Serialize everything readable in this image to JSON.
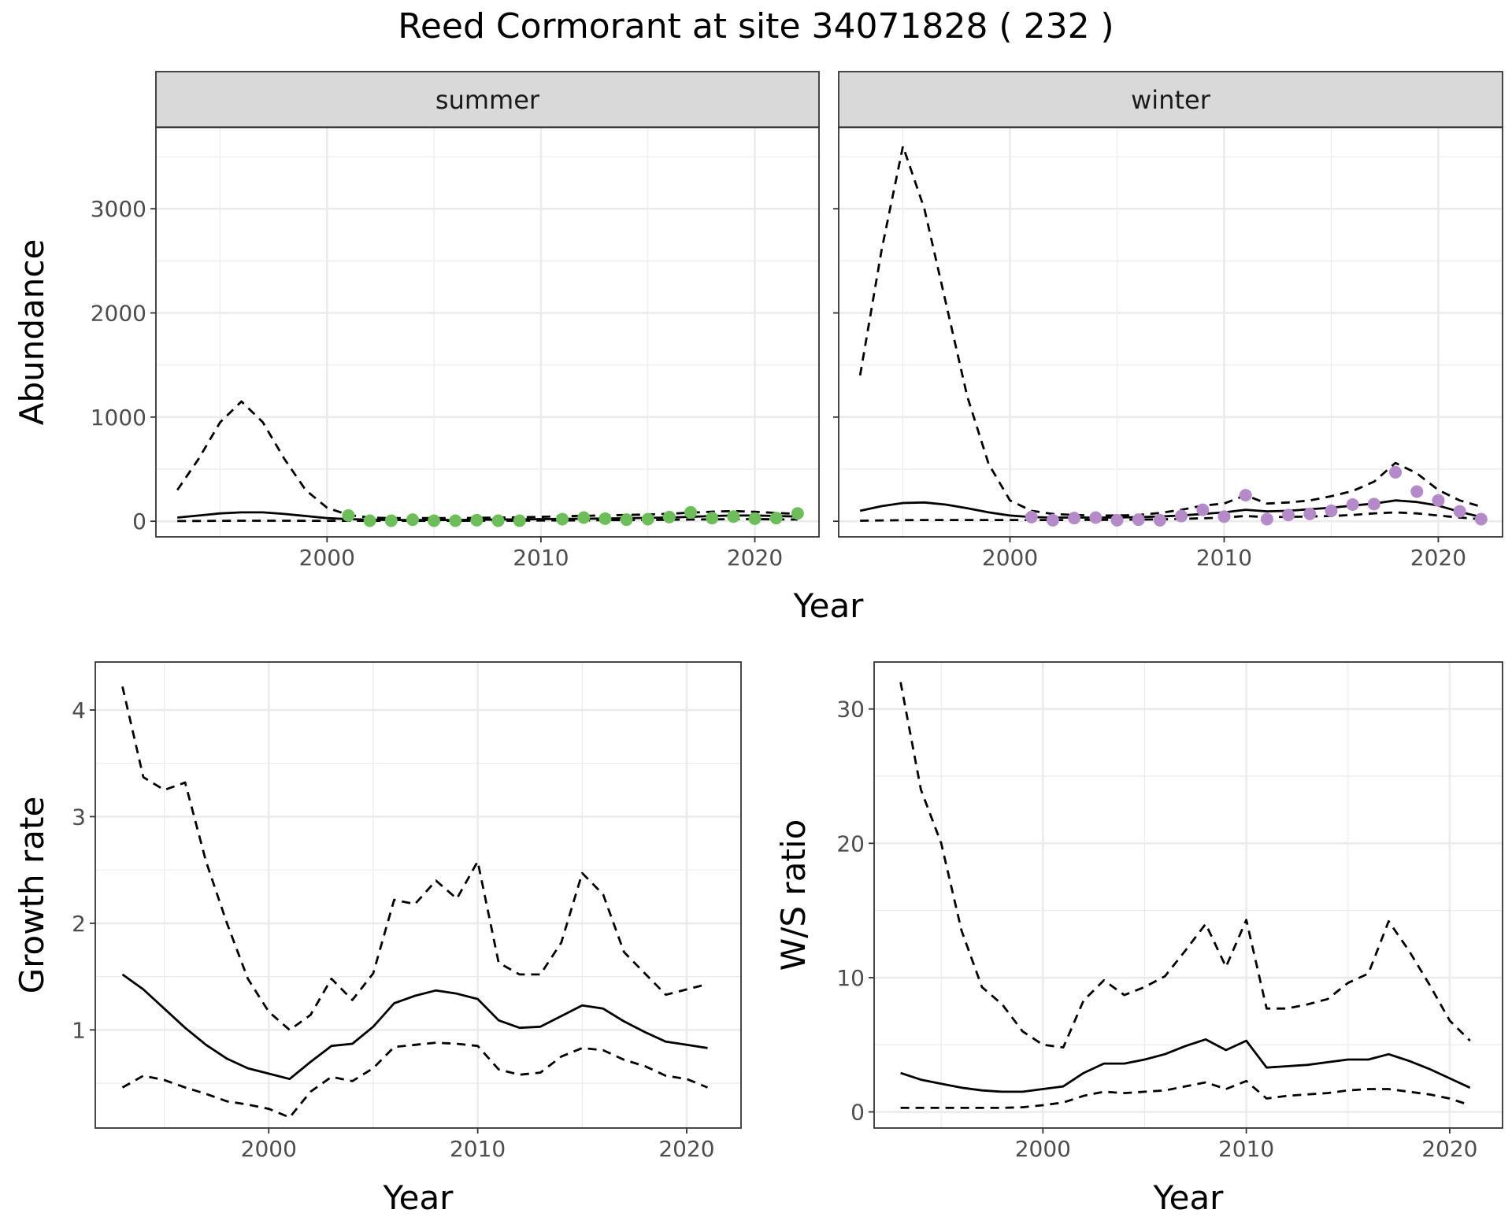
{
  "figure": {
    "title": "Reed Cormorant at site 34071828 ( 232 )"
  },
  "colors": {
    "summer_points": "#6dbe5a",
    "winter_points": "#b48ac8",
    "line": "#000000",
    "strip_fill": "#d9d9d9",
    "grid": "#ebebeb"
  },
  "chart_data": [
    {
      "id": "abundance",
      "type": "line",
      "facets": [
        "summer",
        "winter"
      ],
      "xlabel": "Year",
      "ylabel": "Abundance",
      "xlim": [
        1992,
        2023
      ],
      "ylim": [
        -150,
        3780
      ],
      "x_ticks": [
        2000,
        2010,
        2020
      ],
      "y_ticks": [
        0,
        1000,
        2000,
        3000
      ],
      "grid": true,
      "panels": [
        {
          "facet": "summer",
          "point_color": "#6dbe5a",
          "series": [
            {
              "role": "estimate",
              "style": "solid",
              "x": [
                1993,
                1994,
                1995,
                1996,
                1997,
                1998,
                1999,
                2000,
                2001,
                2002,
                2003,
                2004,
                2005,
                2006,
                2007,
                2008,
                2009,
                2010,
                2011,
                2012,
                2013,
                2014,
                2015,
                2016,
                2017,
                2018,
                2019,
                2020,
                2021,
                2022
              ],
              "y": [
                35,
                55,
                75,
                85,
                85,
                70,
                50,
                30,
                20,
                15,
                12,
                12,
                12,
                12,
                14,
                16,
                18,
                20,
                22,
                24,
                26,
                28,
                32,
                36,
                42,
                50,
                55,
                55,
                50,
                45
              ]
            },
            {
              "role": "upper",
              "style": "dashed",
              "x": [
                1993,
                1994,
                1995,
                1996,
                1997,
                1998,
                1999,
                2000,
                2001,
                2002,
                2003,
                2004,
                2005,
                2006,
                2007,
                2008,
                2009,
                2010,
                2011,
                2012,
                2013,
                2014,
                2015,
                2016,
                2017,
                2018,
                2019,
                2020,
                2021,
                2022
              ],
              "y": [
                300,
                600,
                950,
                1150,
                950,
                600,
                300,
                130,
                60,
                35,
                30,
                30,
                30,
                30,
                32,
                35,
                38,
                42,
                48,
                52,
                56,
                60,
                65,
                72,
                82,
                92,
                98,
                90,
                80,
                70
              ]
            },
            {
              "role": "lower",
              "style": "dashed",
              "x": [
                1993,
                1994,
                1995,
                1996,
                1997,
                1998,
                1999,
                2000,
                2001,
                2002,
                2003,
                2004,
                2005,
                2006,
                2007,
                2008,
                2009,
                2010,
                2011,
                2012,
                2013,
                2014,
                2015,
                2016,
                2017,
                2018,
                2019,
                2020,
                2021,
                2022
              ],
              "y": [
                2,
                3,
                4,
                5,
                5,
                5,
                4,
                4,
                4,
                4,
                4,
                4,
                4,
                4,
                5,
                5,
                6,
                7,
                8,
                9,
                10,
                11,
                12,
                14,
                16,
                18,
                20,
                20,
                18,
                16
              ]
            }
          ],
          "points": {
            "x": [
              2001,
              2002,
              2003,
              2004,
              2005,
              2006,
              2007,
              2008,
              2009,
              2011,
              2012,
              2013,
              2014,
              2015,
              2016,
              2017,
              2018,
              2019,
              2020,
              2021,
              2022
            ],
            "y": [
              55,
              5,
              5,
              15,
              5,
              5,
              10,
              5,
              5,
              20,
              35,
              25,
              15,
              20,
              40,
              85,
              30,
              45,
              25,
              30,
              75
            ]
          }
        },
        {
          "facet": "winter",
          "point_color": "#b48ac8",
          "series": [
            {
              "role": "estimate",
              "style": "solid",
              "x": [
                1993,
                1994,
                1995,
                1996,
                1997,
                1998,
                1999,
                2000,
                2001,
                2002,
                2003,
                2004,
                2005,
                2006,
                2007,
                2008,
                2009,
                2010,
                2011,
                2012,
                2013,
                2014,
                2015,
                2016,
                2017,
                2018,
                2019,
                2020,
                2021,
                2022
              ],
              "y": [
                100,
                145,
                175,
                180,
                160,
                125,
                85,
                55,
                40,
                35,
                35,
                35,
                35,
                40,
                45,
                55,
                70,
                85,
                110,
                95,
                100,
                115,
                130,
                150,
                170,
                200,
                185,
                150,
                90,
                40
              ]
            },
            {
              "role": "upper",
              "style": "dashed",
              "x": [
                1993,
                1994,
                1995,
                1996,
                1997,
                1998,
                1999,
                2000,
                2001,
                2002,
                2003,
                2004,
                2005,
                2006,
                2007,
                2008,
                2009,
                2010,
                2011,
                2012,
                2013,
                2014,
                2015,
                2016,
                2017,
                2018,
                2019,
                2020,
                2021,
                2022
              ],
              "y": [
                1400,
                2600,
                3600,
                3000,
                2100,
                1200,
                550,
                200,
                100,
                70,
                60,
                55,
                55,
                60,
                80,
                110,
                150,
                170,
                250,
                170,
                180,
                200,
                240,
                290,
                380,
                560,
                460,
                300,
                200,
                140
              ]
            },
            {
              "role": "lower",
              "style": "dashed",
              "x": [
                1993,
                1994,
                1995,
                1996,
                1997,
                1998,
                1999,
                2000,
                2001,
                2002,
                2003,
                2004,
                2005,
                2006,
                2007,
                2008,
                2009,
                2010,
                2011,
                2012,
                2013,
                2014,
                2015,
                2016,
                2017,
                2018,
                2019,
                2020,
                2021,
                2022
              ],
              "y": [
                5,
                8,
                10,
                12,
                12,
                12,
                12,
                12,
                12,
                12,
                12,
                14,
                14,
                16,
                18,
                22,
                28,
                35,
                50,
                40,
                42,
                45,
                50,
                60,
                75,
                85,
                75,
                55,
                35,
                20
              ]
            }
          ],
          "points": {
            "x": [
              2001,
              2002,
              2003,
              2004,
              2005,
              2006,
              2007,
              2008,
              2009,
              2010,
              2011,
              2012,
              2013,
              2014,
              2015,
              2016,
              2017,
              2018,
              2019,
              2020,
              2021,
              2022
            ],
            "y": [
              40,
              10,
              30,
              35,
              10,
              15,
              10,
              50,
              110,
              45,
              250,
              20,
              60,
              70,
              100,
              160,
              165,
              470,
              285,
              200,
              95,
              20
            ]
          }
        }
      ]
    },
    {
      "id": "growth",
      "type": "line",
      "xlabel": "Year",
      "ylabel": "Growth rate",
      "xlim": [
        1991.7,
        2022.6
      ],
      "ylim": [
        0.08,
        4.45
      ],
      "x_ticks": [
        2000,
        2010,
        2020
      ],
      "y_ticks": [
        1,
        2,
        3,
        4
      ],
      "grid": true,
      "series": [
        {
          "role": "estimate",
          "style": "solid",
          "x": [
            1993,
            1994,
            1995,
            1996,
            1997,
            1998,
            1999,
            2000,
            2001,
            2002,
            2003,
            2004,
            2005,
            2006,
            2007,
            2008,
            2009,
            2010,
            2011,
            2012,
            2013,
            2014,
            2015,
            2016,
            2017,
            2018,
            2019,
            2020,
            2021
          ],
          "y": [
            1.52,
            1.38,
            1.2,
            1.02,
            0.86,
            0.73,
            0.64,
            0.59,
            0.54,
            0.7,
            0.85,
            0.87,
            1.03,
            1.25,
            1.32,
            1.37,
            1.34,
            1.29,
            1.09,
            1.02,
            1.03,
            1.13,
            1.23,
            1.2,
            1.08,
            0.98,
            0.89,
            0.86,
            0.83
          ]
        },
        {
          "role": "upper",
          "style": "dashed",
          "x": [
            1993,
            1994,
            1995,
            1996,
            1997,
            1998,
            1999,
            2000,
            2001,
            2002,
            2003,
            2004,
            2005,
            2006,
            2007,
            2008,
            2009,
            2010,
            2011,
            2012,
            2013,
            2014,
            2015,
            2016,
            2017,
            2018,
            2019,
            2020,
            2021
          ],
          "y": [
            4.22,
            3.37,
            3.25,
            3.32,
            2.58,
            2.0,
            1.48,
            1.17,
            1.0,
            1.14,
            1.48,
            1.28,
            1.53,
            2.22,
            2.18,
            2.4,
            2.23,
            2.58,
            1.63,
            1.52,
            1.52,
            1.82,
            2.47,
            2.27,
            1.73,
            1.53,
            1.33,
            1.38,
            1.43
          ]
        },
        {
          "role": "lower",
          "style": "dashed",
          "x": [
            1993,
            1994,
            1995,
            1996,
            1997,
            1998,
            1999,
            2000,
            2001,
            2002,
            2003,
            2004,
            2005,
            2006,
            2007,
            2008,
            2009,
            2010,
            2011,
            2012,
            2013,
            2014,
            2015,
            2016,
            2017,
            2018,
            2019,
            2020,
            2021
          ],
          "y": [
            0.46,
            0.57,
            0.53,
            0.46,
            0.4,
            0.33,
            0.3,
            0.26,
            0.18,
            0.42,
            0.56,
            0.52,
            0.64,
            0.84,
            0.86,
            0.88,
            0.87,
            0.85,
            0.63,
            0.58,
            0.6,
            0.75,
            0.83,
            0.81,
            0.72,
            0.66,
            0.57,
            0.54,
            0.46
          ]
        }
      ]
    },
    {
      "id": "ws_ratio",
      "type": "line",
      "xlabel": "Year",
      "ylabel": "W/S ratio",
      "xlim": [
        1991.7,
        2022.6
      ],
      "ylim": [
        -1.2,
        33.5
      ],
      "x_ticks": [
        2000,
        2010,
        2020
      ],
      "y_ticks": [
        0,
        10,
        20,
        30
      ],
      "grid": true,
      "series": [
        {
          "role": "estimate",
          "style": "solid",
          "x": [
            1993,
            1994,
            1995,
            1996,
            1997,
            1998,
            1999,
            2000,
            2001,
            2002,
            2003,
            2004,
            2005,
            2006,
            2007,
            2008,
            2009,
            2010,
            2011,
            2012,
            2013,
            2014,
            2015,
            2016,
            2017,
            2018,
            2019,
            2020,
            2021
          ],
          "y": [
            2.9,
            2.4,
            2.1,
            1.8,
            1.6,
            1.5,
            1.5,
            1.7,
            1.9,
            2.9,
            3.6,
            3.6,
            3.9,
            4.3,
            4.9,
            5.4,
            4.6,
            5.3,
            3.3,
            3.4,
            3.5,
            3.7,
            3.9,
            3.9,
            4.3,
            3.8,
            3.2,
            2.5,
            1.8
          ]
        },
        {
          "role": "upper",
          "style": "dashed",
          "x": [
            1993,
            1994,
            1995,
            1996,
            1997,
            1998,
            1999,
            2000,
            2001,
            2002,
            2003,
            2004,
            2005,
            2006,
            2007,
            2008,
            2009,
            2010,
            2011,
            2012,
            2013,
            2014,
            2015,
            2016,
            2017,
            2018,
            2019,
            2020,
            2021
          ],
          "y": [
            32.0,
            24.0,
            20.0,
            13.5,
            9.3,
            8.0,
            6.0,
            5.0,
            4.8,
            8.3,
            9.8,
            8.7,
            9.3,
            10.1,
            12.0,
            14.0,
            10.8,
            14.3,
            7.7,
            7.7,
            8.0,
            8.4,
            9.6,
            10.3,
            14.2,
            12.0,
            9.5,
            6.8,
            5.3
          ]
        },
        {
          "role": "lower",
          "style": "dashed",
          "x": [
            1993,
            1994,
            1995,
            1996,
            1997,
            1998,
            1999,
            2000,
            2001,
            2002,
            2003,
            2004,
            2005,
            2006,
            2007,
            2008,
            2009,
            2010,
            2011,
            2012,
            2013,
            2014,
            2015,
            2016,
            2017,
            2018,
            2019,
            2020,
            2021
          ],
          "y": [
            0.3,
            0.3,
            0.3,
            0.3,
            0.3,
            0.3,
            0.35,
            0.5,
            0.7,
            1.2,
            1.5,
            1.4,
            1.5,
            1.6,
            1.9,
            2.2,
            1.7,
            2.3,
            1.0,
            1.2,
            1.3,
            1.4,
            1.6,
            1.7,
            1.7,
            1.5,
            1.3,
            1.0,
            0.5
          ]
        }
      ]
    }
  ]
}
